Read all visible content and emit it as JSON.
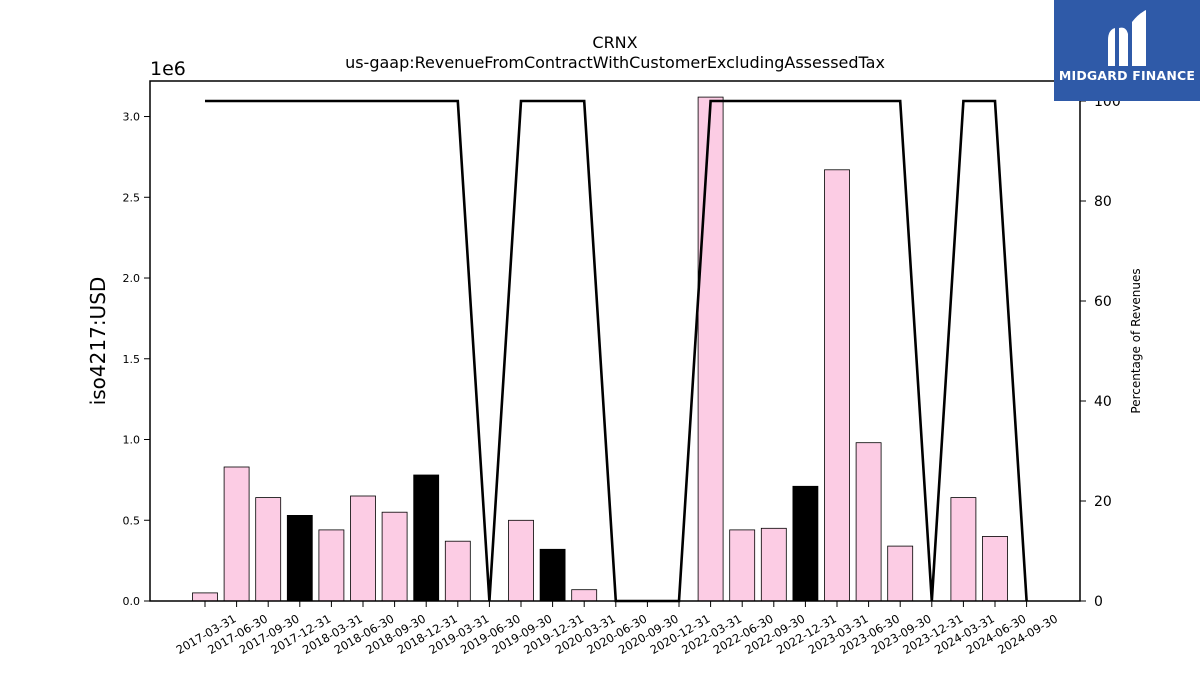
{
  "chart_data": {
    "type": "bar",
    "title": "CRNX",
    "subtitle": "us-gaap:RevenueFromContractWithCustomerExcludingAssessedTax",
    "ylabel": "iso4217:USD",
    "y_offset_label": "1e6",
    "y2label": "Percentage of Revenues",
    "ylim": [
      0,
      3.22
    ],
    "y2lim": [
      0,
      104
    ],
    "yticks": [
      "0.0",
      "0.5",
      "1.0",
      "1.5",
      "2.0",
      "2.5",
      "3.0"
    ],
    "y2ticks": [
      "0",
      "20",
      "40",
      "60",
      "80",
      "100"
    ],
    "categories": [
      "2017-03-31",
      "2017-06-30",
      "2017-09-30",
      "2017-12-31",
      "2018-03-31",
      "2018-06-30",
      "2018-09-30",
      "2018-12-31",
      "2019-03-31",
      "2019-06-30",
      "2019-09-30",
      "2019-12-31",
      "2020-03-31",
      "2020-06-30",
      "2020-09-30",
      "2020-12-31",
      "2022-03-31",
      "2022-06-30",
      "2022-09-30",
      "2022-12-31",
      "2023-03-31",
      "2023-06-30",
      "2023-09-30",
      "2023-12-31",
      "2024-03-31",
      "2024-06-30",
      "2024-09-30"
    ],
    "series": [
      {
        "type": "bar",
        "values": [
          0.05,
          0.83,
          0.64,
          0.53,
          0.44,
          0.65,
          0.55,
          0.78,
          0.37,
          0,
          0.5,
          0.32,
          0.07,
          0,
          0,
          0,
          3.12,
          0.44,
          0.45,
          0.71,
          2.67,
          0.98,
          0.34,
          0,
          0.64,
          0.4,
          0
        ],
        "colors": [
          "#fccce4",
          "#fccce4",
          "#fccce4",
          "#000000",
          "#fccce4",
          "#fccce4",
          "#fccce4",
          "#000000",
          "#fccce4",
          "#fccce4",
          "#fccce4",
          "#000000",
          "#fccce4",
          "#fccce4",
          "#fccce4",
          "#fccce4",
          "#fccce4",
          "#fccce4",
          "#fccce4",
          "#000000",
          "#fccce4",
          "#fccce4",
          "#fccce4",
          "#fccce4",
          "#fccce4",
          "#fccce4",
          "#fccce4"
        ]
      },
      {
        "type": "line",
        "axis": "right",
        "values": [
          100,
          100,
          100,
          100,
          100,
          100,
          100,
          100,
          100,
          0,
          100,
          100,
          100,
          0,
          0,
          0,
          100,
          100,
          100,
          100,
          100,
          100,
          100,
          0,
          100,
          100,
          0
        ]
      }
    ],
    "grid": false
  },
  "logo": {
    "text": "MIDGARD FINANCE"
  }
}
